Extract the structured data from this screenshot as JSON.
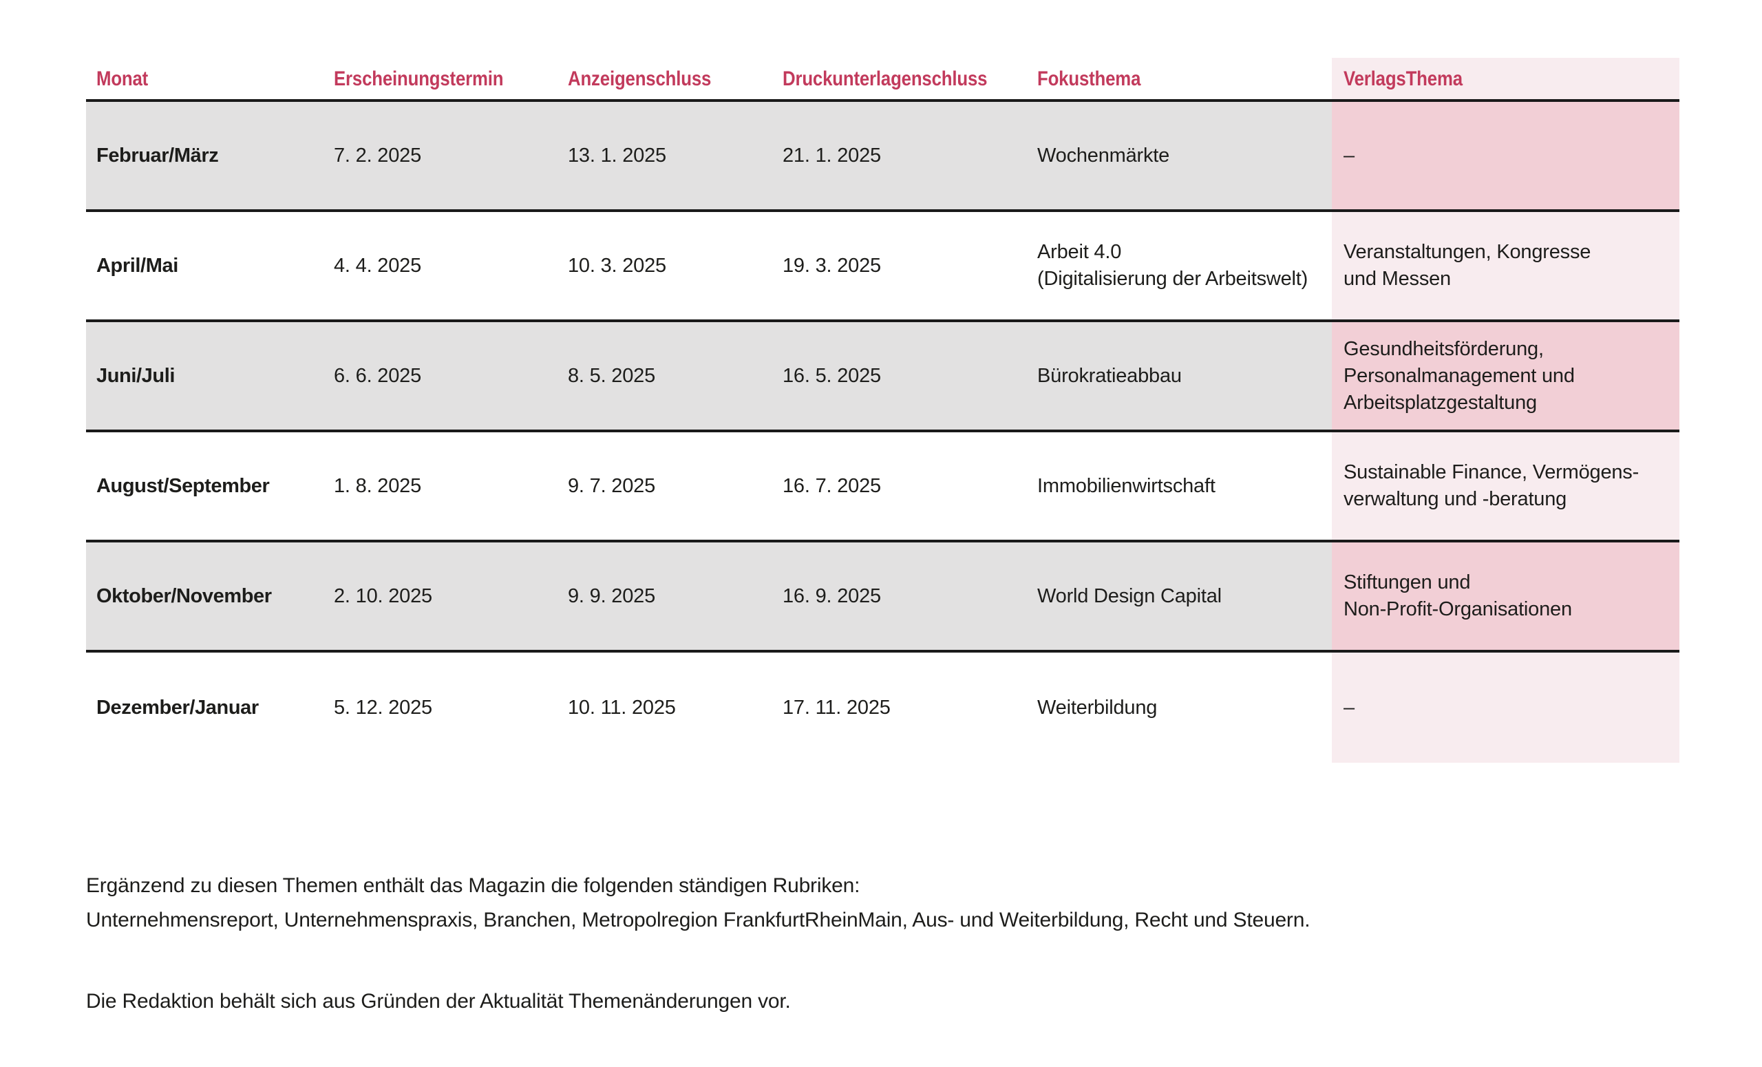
{
  "colors": {
    "header_text": "#c23a5c",
    "row_gray": "#e2e1e1",
    "verlag_pink_light": "#f8ecef",
    "verlag_pink_dark": "#f2cfd6",
    "separator_line": "#1a1a1a",
    "body_text": "#1d1d1b"
  },
  "table": {
    "columns": [
      {
        "label": "Monat"
      },
      {
        "label": "Erscheinungstermin"
      },
      {
        "label": "Anzeigenschluss"
      },
      {
        "label": "Druckunterlagenschluss"
      },
      {
        "label": "Fokusthema"
      },
      {
        "label": "VerlagsThema"
      }
    ],
    "rows": [
      {
        "monat": "Februar/März",
        "erscheinungstermin": "7. 2. 2025",
        "anzeigenschluss": "13. 1. 2025",
        "druckunterlagenschluss": "21. 1. 2025",
        "fokusthema": "Wochenmärkte",
        "verlagsthema": "–"
      },
      {
        "monat": "April/Mai",
        "erscheinungstermin": "4. 4. 2025",
        "anzeigenschluss": "10. 3. 2025",
        "druckunterlagenschluss": "19. 3. 2025",
        "fokusthema": "Arbeit 4.0\n(Digitalisierung der Arbeitswelt)",
        "verlagsthema": "Veranstaltungen, Kongresse\nund Messen"
      },
      {
        "monat": "Juni/Juli",
        "erscheinungstermin": "6. 6. 2025",
        "anzeigenschluss": "8. 5. 2025",
        "druckunterlagenschluss": "16. 5. 2025",
        "fokusthema": "Bürokratieabbau",
        "verlagsthema": "Gesundheitsförderung,\nPersonalmanagement und\nArbeitsplatzgestaltung"
      },
      {
        "monat": "August/September",
        "erscheinungstermin": "1. 8. 2025",
        "anzeigenschluss": "9. 7. 2025",
        "druckunterlagenschluss": "16. 7. 2025",
        "fokusthema": "Immobilienwirtschaft",
        "verlagsthema": "Sustainable Finance, Vermögens-\nverwaltung und -beratung"
      },
      {
        "monat": "Oktober/November",
        "erscheinungstermin": "2. 10. 2025",
        "anzeigenschluss": "9. 9. 2025",
        "druckunterlagenschluss": "16. 9. 2025",
        "fokusthema": "World Design Capital",
        "verlagsthema": "Stiftungen und\nNon-Profit-Organisationen"
      },
      {
        "monat": "Dezember/Januar",
        "erscheinungstermin": "5. 12. 2025",
        "anzeigenschluss": "10. 11. 2025",
        "druckunterlagenschluss": "17. 11. 2025",
        "fokusthema": "Weiterbildung",
        "verlagsthema": "–"
      }
    ]
  },
  "footer": {
    "rubriken_intro": "Ergänzend zu diesen Themen enthält das Magazin die folgenden ständigen Rubriken:",
    "rubriken_list": "Unternehmensreport, Unternehmenspraxis, Branchen, Metropolregion FrankfurtRheinMain, Aus- und Weiterbildung, Recht und Steuern.",
    "note": "Die Redaktion behält sich aus Gründen der Aktualität Themenänderungen vor."
  }
}
